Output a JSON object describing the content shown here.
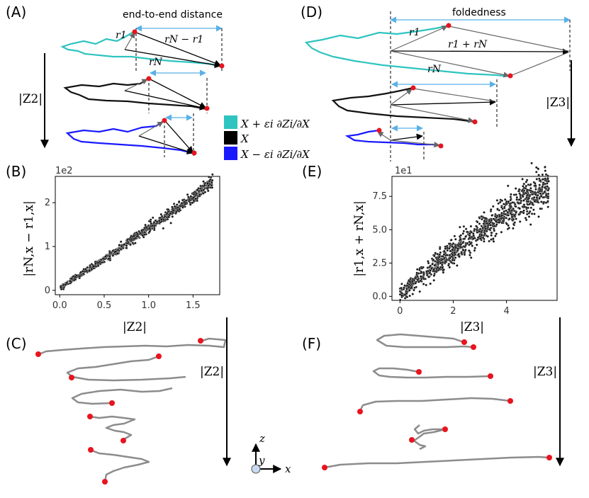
{
  "panels": {
    "A": {
      "label": "(A)",
      "title": "end-to-end distance",
      "r1": "r1",
      "rN_minus_r1": "rN − r1",
      "rN": "rN",
      "arrow_label": "|Z2|"
    },
    "B": {
      "label": "(B)",
      "offset": "1e2",
      "ylabel": "|rN,x − r1,x|",
      "xlabel": "|Z2|"
    },
    "C": {
      "label": "(C)",
      "arrow_label": "|Z2|"
    },
    "D": {
      "label": "(D)",
      "title": "foldedness",
      "r1": "r1",
      "r1_plus_rN": "r1 + rN",
      "rN": "rN",
      "arrow_label": "|Z3|"
    },
    "E": {
      "label": "(E)",
      "offset": "1e1",
      "ylabel": "|r1,x + rN,x|",
      "xlabel": "|Z3|"
    },
    "F": {
      "label": "(F)",
      "arrow_label": "|Z3|"
    }
  },
  "legend": [
    {
      "text": "X + εi ∂Zi/∂X",
      "color": "#2ec4c0"
    },
    {
      "text": "X",
      "color": "#000000"
    },
    {
      "text": "X − εi ∂Zi/∂X",
      "color": "#1a1aff"
    }
  ],
  "axes_glyph": {
    "z": "z",
    "y": "y",
    "x": "x"
  },
  "colors": {
    "cyan": "#2ec4c0",
    "black": "#111111",
    "blue": "#1a1aff",
    "gray": "#8c8c8c",
    "red": "#e8141e",
    "lightblue": "#5ab0e8"
  },
  "chart_data": [
    {
      "type": "scatter",
      "title": "",
      "xlabel": "|Z2|",
      "ylabel": "|rN,x − r1,x|",
      "xlim": [
        -0.05,
        1.8
      ],
      "ylim": [
        -0.1,
        2.6
      ],
      "x_ticks": [
        0.0,
        0.5,
        1.0,
        1.5
      ],
      "x_tick_labels": [
        "0.0",
        "0.5",
        "1.0",
        "1.5"
      ],
      "y_ticks": [
        0,
        1,
        2
      ],
      "y_tick_labels": [
        "0",
        "1",
        "2"
      ],
      "y_offset_label": "1e2",
      "trend": {
        "x": [
          0.0,
          0.5,
          1.0,
          1.5,
          1.72
        ],
        "y": [
          0.05,
          0.72,
          1.42,
          2.12,
          2.5
        ]
      },
      "n_points": 800
    },
    {
      "type": "scatter",
      "title": "",
      "xlabel": "|Z3|",
      "ylabel": "|r1,x + rN,x|",
      "xlim": [
        -0.3,
        5.9
      ],
      "ylim": [
        -0.3,
        9.0
      ],
      "x_ticks": [
        0,
        2,
        4
      ],
      "x_tick_labels": [
        "0",
        "2",
        "4"
      ],
      "y_ticks": [
        0.0,
        2.5,
        5.0,
        7.5
      ],
      "y_tick_labels": [
        "0.0",
        "2.5",
        "5.0",
        "7.5"
      ],
      "y_offset_label": "1e1",
      "trend": {
        "x": [
          0.0,
          1.0,
          2.0,
          3.0,
          4.0,
          5.0,
          5.6
        ],
        "y": [
          0.2,
          1.8,
          3.3,
          4.9,
          6.3,
          7.6,
          8.3
        ]
      },
      "n_points": 1000
    }
  ]
}
